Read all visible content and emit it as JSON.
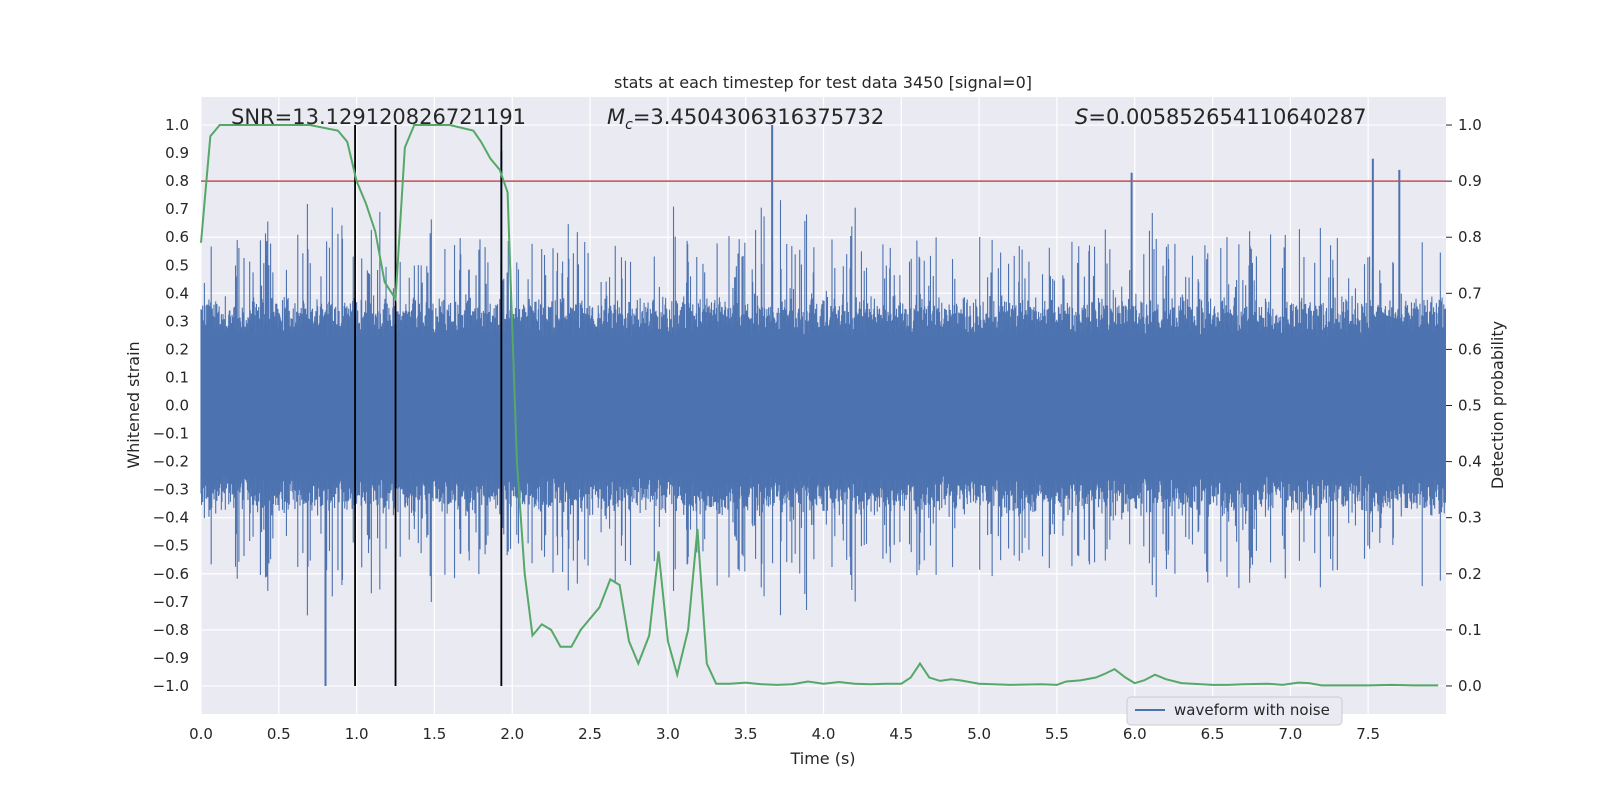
{
  "chart_data": {
    "type": "line",
    "title": "stats at each timestep for test data 3450 [signal=0]",
    "xlabel": "Time (s)",
    "ylabel": "Whitened strain",
    "ylabel_right": "Detection probability",
    "xlim": [
      0.0,
      8.0
    ],
    "ylim": [
      -1.1,
      1.1
    ],
    "ylim_right": [
      -0.05,
      1.05
    ],
    "x_ticks": [
      "0.0",
      "0.5",
      "1.0",
      "1.5",
      "2.0",
      "2.5",
      "3.0",
      "3.5",
      "4.0",
      "4.5",
      "5.0",
      "5.5",
      "6.0",
      "6.5",
      "7.0",
      "7.5"
    ],
    "y_ticks": [
      "1.0",
      "0.9",
      "0.8",
      "0.7",
      "0.6",
      "0.5",
      "0.4",
      "0.3",
      "0.2",
      "0.1",
      "0.0",
      "−0.1",
      "−0.2",
      "−0.3",
      "−0.4",
      "−0.5",
      "−0.6",
      "−0.7",
      "−0.8",
      "−0.9",
      "−1.0"
    ],
    "y_ticks_right": [
      "1.0",
      "0.9",
      "0.8",
      "0.7",
      "0.6",
      "0.5",
      "0.4",
      "0.3",
      "0.2",
      "0.1",
      "0.0"
    ],
    "annotations": {
      "snr_label": "SNR=13.129120826721191",
      "mc_symbol": "M",
      "mc_sub": "c",
      "mc_value": "=3.4504306316375732",
      "s_symbol": "S",
      "s_value": "=0.005852654110640287"
    },
    "threshold": {
      "value": 0.9,
      "axis": "right",
      "color": "#c44e52"
    },
    "vertical_lines": [
      0.99,
      1.25,
      1.93
    ],
    "series": [
      {
        "name": "waveform with noise",
        "color": "#4c72b0",
        "axis": "left",
        "note": "dense whitened noise, envelope approx ±0.4 with spikes to ±1.0",
        "notable_peaks": [
          {
            "x": 0.8,
            "y": -1.0
          },
          {
            "x": 1.93,
            "y": 0.91
          },
          {
            "x": 3.67,
            "y": 1.0
          },
          {
            "x": 5.98,
            "y": 0.83
          },
          {
            "x": 7.53,
            "y": 0.88
          },
          {
            "x": 7.7,
            "y": 0.84
          }
        ]
      },
      {
        "name": "detection probability",
        "color": "#55a868",
        "axis": "right",
        "x": [
          0.0,
          0.06,
          0.12,
          0.2,
          0.3,
          0.5,
          0.7,
          0.88,
          0.94,
          1.0,
          1.06,
          1.12,
          1.18,
          1.25,
          1.31,
          1.37,
          1.45,
          1.6,
          1.75,
          1.8,
          1.86,
          1.92,
          1.97,
          2.03,
          2.08,
          2.13,
          2.19,
          2.25,
          2.31,
          2.38,
          2.44,
          2.5,
          2.56,
          2.63,
          2.69,
          2.75,
          2.81,
          2.88,
          2.94,
          3.0,
          3.06,
          3.13,
          3.19,
          3.25,
          3.31,
          3.4,
          3.5,
          3.6,
          3.7,
          3.8,
          3.9,
          4.0,
          4.1,
          4.2,
          4.3,
          4.4,
          4.5,
          4.56,
          4.62,
          4.68,
          4.75,
          4.82,
          4.88,
          5.0,
          5.2,
          5.4,
          5.5,
          5.56,
          5.65,
          5.75,
          5.81,
          5.87,
          5.94,
          6.0,
          6.06,
          6.13,
          6.2,
          6.3,
          6.5,
          6.6,
          6.7,
          6.85,
          6.95,
          7.05,
          7.12,
          7.2,
          7.35,
          7.5,
          7.65,
          7.8,
          7.95
        ],
        "values": [
          0.79,
          0.98,
          1.0,
          1.0,
          1.0,
          1.0,
          1.0,
          0.99,
          0.97,
          0.9,
          0.86,
          0.81,
          0.72,
          0.69,
          0.96,
          1.0,
          1.0,
          1.0,
          0.99,
          0.97,
          0.94,
          0.92,
          0.88,
          0.4,
          0.2,
          0.09,
          0.11,
          0.1,
          0.07,
          0.07,
          0.1,
          0.12,
          0.14,
          0.19,
          0.18,
          0.08,
          0.04,
          0.09,
          0.24,
          0.08,
          0.02,
          0.1,
          0.28,
          0.04,
          0.004,
          0.004,
          0.006,
          0.003,
          0.002,
          0.003,
          0.008,
          0.004,
          0.007,
          0.004,
          0.003,
          0.004,
          0.004,
          0.015,
          0.04,
          0.015,
          0.009,
          0.012,
          0.01,
          0.004,
          0.002,
          0.003,
          0.002,
          0.008,
          0.01,
          0.015,
          0.022,
          0.03,
          0.015,
          0.005,
          0.01,
          0.02,
          0.012,
          0.005,
          0.002,
          0.002,
          0.003,
          0.004,
          0.002,
          0.006,
          0.005,
          0.001,
          0.001,
          0.001,
          0.002,
          0.001,
          0.001
        ]
      }
    ],
    "legend": {
      "entries": [
        "waveform with noise"
      ],
      "position": "lower-right"
    }
  }
}
